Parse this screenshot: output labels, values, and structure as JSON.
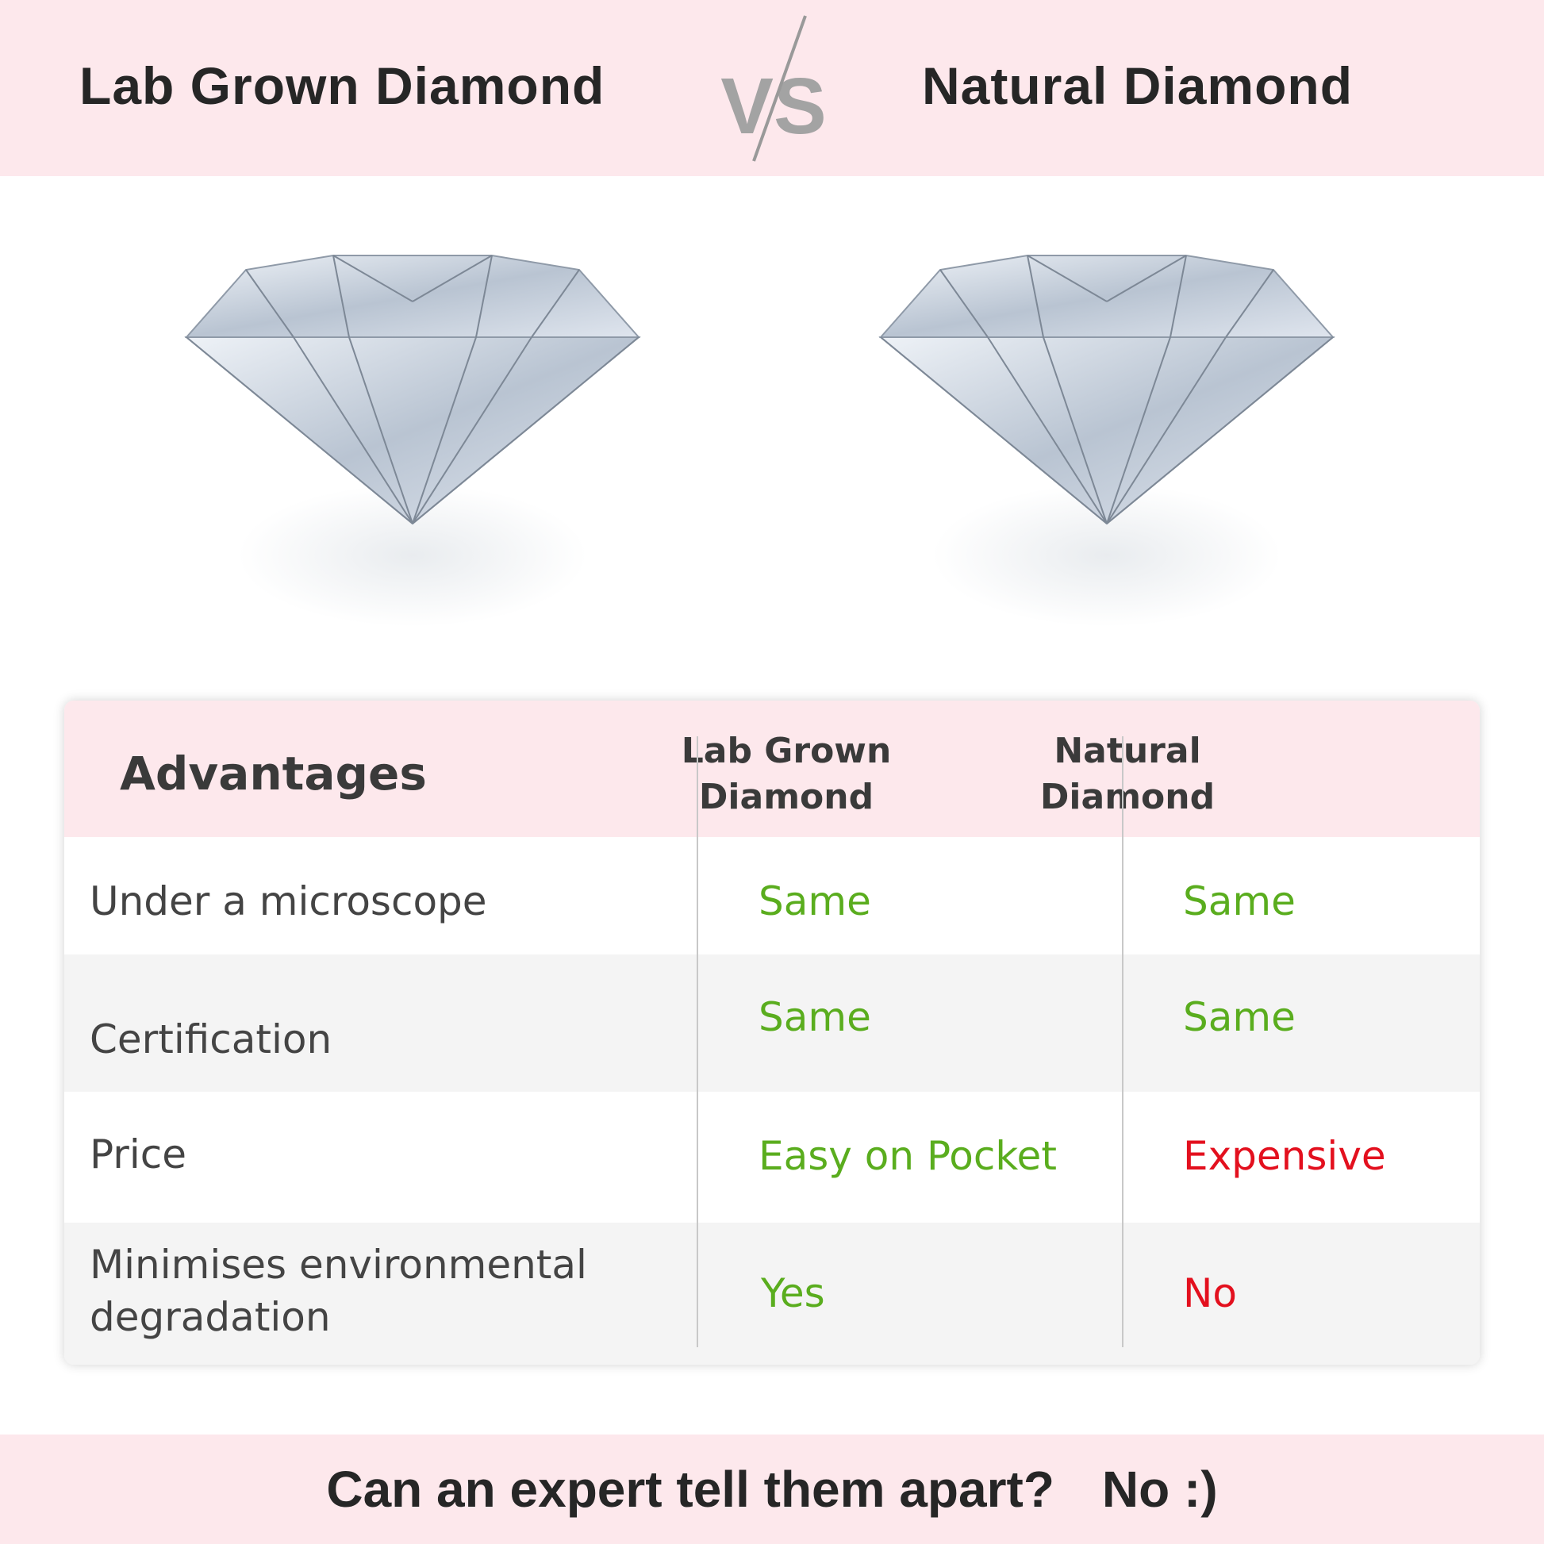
{
  "header": {
    "left_title": "Lab Grown Diamond",
    "vs": "VS",
    "right_title": "Natural Diamond"
  },
  "table": {
    "headers": [
      "Advantages",
      "Lab Grown Diamond",
      "Natural Diamond"
    ],
    "rows": [
      {
        "label": "Under a microscope",
        "lab": "Same",
        "natural": "Same"
      },
      {
        "label": "Certification",
        "lab": "Same",
        "natural": "Same"
      },
      {
        "label": "Price",
        "lab": "Easy on Pocket",
        "natural": "Expensive"
      },
      {
        "label": "Minimises environmental degradation",
        "lab": "Yes",
        "natural": "No"
      }
    ]
  },
  "footer": {
    "question": "Can an expert tell them apart?",
    "answer": "No :)"
  },
  "colors": {
    "band": "#fde8ec",
    "positive": "#5aad1e",
    "negative": "#e3101e"
  }
}
